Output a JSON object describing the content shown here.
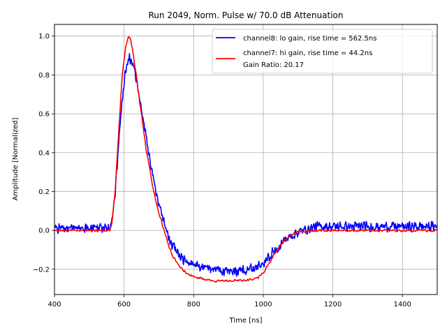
{
  "chart_data": {
    "type": "line",
    "title": "Run 2049, Norm. Pulse w/ 70.0 dB Attenuation",
    "xlabel": "Time [ns]",
    "ylabel": "Amplitude [Normalized]",
    "xlim": [
      400,
      1500
    ],
    "ylim": [
      -0.33,
      1.06
    ],
    "xticks": [
      400,
      600,
      800,
      1000,
      1200,
      1400
    ],
    "yticks": [
      -0.2,
      0.0,
      0.2,
      0.4,
      0.6,
      0.8,
      1.0
    ],
    "xtick_labels": [
      "400",
      "600",
      "800",
      "1000",
      "1200",
      "1400"
    ],
    "ytick_labels": [
      "−0.2",
      "0.0",
      "0.2",
      "0.4",
      "0.6",
      "0.8",
      "1.0"
    ],
    "grid": true,
    "legend_position": "top-right",
    "series": [
      {
        "name": "channel8: lo gain, rise time = 562.5ns",
        "color": "#0000ff",
        "x": [
          400,
          520,
          560,
          565,
          575,
          585,
          595,
          605,
          615,
          625,
          635,
          645,
          655,
          665,
          675,
          685,
          695,
          710,
          725,
          740,
          760,
          780,
          800,
          830,
          860,
          890,
          920,
          950,
          980,
          1000,
          1020,
          1040,
          1060,
          1080,
          1100,
          1150,
          1200,
          1300,
          1400,
          1500
        ],
        "y": [
          0.01,
          0.01,
          0.01,
          0.05,
          0.2,
          0.45,
          0.68,
          0.82,
          0.89,
          0.85,
          0.78,
          0.68,
          0.58,
          0.47,
          0.36,
          0.26,
          0.17,
          0.07,
          -0.02,
          -0.08,
          -0.13,
          -0.16,
          -0.18,
          -0.19,
          -0.2,
          -0.21,
          -0.21,
          -0.2,
          -0.19,
          -0.17,
          -0.13,
          -0.09,
          -0.05,
          -0.03,
          -0.01,
          0.02,
          0.02,
          0.02,
          0.02,
          0.02
        ]
      },
      {
        "name": "channel7: hi gain, rise time = 44.2ns",
        "color": "#ff0000",
        "x": [
          400,
          520,
          560,
          565,
          575,
          585,
          595,
          605,
          612,
          618,
          625,
          635,
          645,
          655,
          665,
          675,
          685,
          695,
          710,
          725,
          740,
          760,
          780,
          800,
          830,
          860,
          890,
          920,
          950,
          980,
          1000,
          1020,
          1040,
          1060,
          1080,
          1100,
          1150,
          1200,
          1300,
          1400,
          1500
        ],
        "y": [
          0.0,
          0.0,
          0.0,
          0.03,
          0.22,
          0.52,
          0.8,
          0.95,
          1.0,
          0.99,
          0.93,
          0.8,
          0.66,
          0.53,
          0.4,
          0.3,
          0.2,
          0.12,
          0.03,
          -0.06,
          -0.13,
          -0.19,
          -0.22,
          -0.24,
          -0.25,
          -0.26,
          -0.26,
          -0.26,
          -0.26,
          -0.25,
          -0.22,
          -0.16,
          -0.1,
          -0.05,
          -0.02,
          -0.01,
          0.0,
          0.0,
          0.0,
          0.0,
          0.0
        ]
      }
    ],
    "annotations": [
      "Gain Ratio: 20.17"
    ]
  }
}
